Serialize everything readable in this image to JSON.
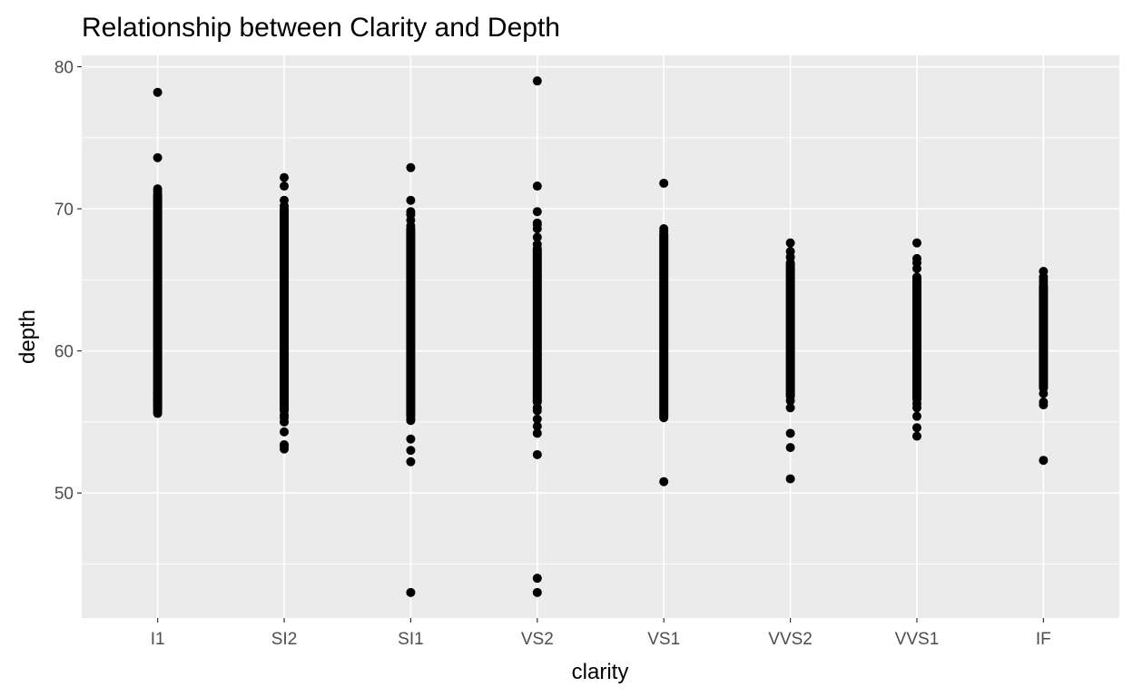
{
  "chart_data": {
    "type": "scatter",
    "title": "Relationship between Clarity and Depth",
    "xlabel": "clarity",
    "ylabel": "depth",
    "categories": [
      "I1",
      "SI2",
      "SI1",
      "VS2",
      "VS1",
      "VVS2",
      "VVS1",
      "IF"
    ],
    "ylim": [
      41.2,
      80.8
    ],
    "yticks": [
      50,
      60,
      70,
      80
    ],
    "grid": true,
    "legend": "none",
    "colors": {
      "panel": "#ebebeb",
      "grid": "#ffffff",
      "point": "#000000"
    },
    "series": [
      {
        "category": "I1",
        "dense_range": [
          55.8,
          71.0
        ],
        "outliers": [
          55.6,
          55.7,
          56.2,
          56.6,
          57.0,
          71.2,
          71.4,
          73.6,
          78.2
        ]
      },
      {
        "category": "SI2",
        "dense_range": [
          55.8,
          70.0
        ],
        "outliers": [
          53.1,
          53.3,
          53.4,
          54.3,
          55.0,
          55.3,
          55.5,
          70.2,
          70.6,
          71.6,
          72.2
        ]
      },
      {
        "category": "SI1",
        "dense_range": [
          55.4,
          68.6
        ],
        "outliers": [
          43.0,
          52.2,
          53.0,
          53.8,
          55.1,
          55.2,
          68.8,
          69.2,
          69.6,
          69.8,
          70.6,
          72.9
        ]
      },
      {
        "category": "VS2",
        "dense_range": [
          56.4,
          67.2
        ],
        "outliers": [
          43.0,
          44.0,
          52.7,
          54.2,
          54.7,
          55.2,
          55.8,
          56.0,
          67.5,
          68.0,
          68.6,
          68.9,
          69.0,
          69.8,
          71.6,
          79.0
        ]
      },
      {
        "category": "VS1",
        "dense_range": [
          55.4,
          68.2
        ],
        "outliers": [
          50.8,
          55.3,
          68.4,
          68.6,
          71.8
        ]
      },
      {
        "category": "VVS2",
        "dense_range": [
          56.8,
          66.2
        ],
        "outliers": [
          51.0,
          53.2,
          54.2,
          56.0,
          56.5,
          66.6,
          67.0,
          67.6
        ]
      },
      {
        "category": "VVS1",
        "dense_range": [
          56.6,
          65.2
        ],
        "outliers": [
          54.0,
          54.6,
          55.4,
          56.0,
          56.3,
          65.8,
          66.2,
          66.5,
          67.6
        ]
      },
      {
        "category": "IF",
        "dense_range": [
          57.4,
          64.6
        ],
        "outliers": [
          52.3,
          56.2,
          56.4,
          57.0,
          64.8,
          65.0,
          65.2,
          65.6
        ]
      }
    ]
  }
}
